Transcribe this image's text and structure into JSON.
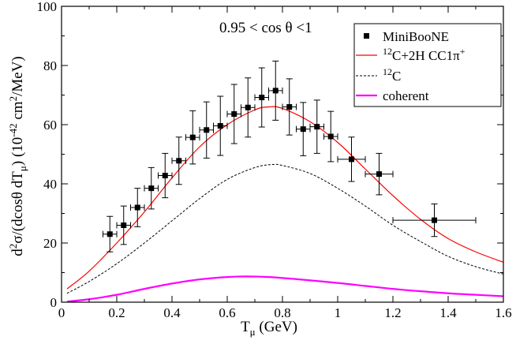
{
  "chart_data": {
    "type": "line",
    "title": "",
    "annotation": "0.95 < cos θ <1",
    "xlabel": {
      "main": "T",
      "sub": "μ",
      "unit": " (GeV)"
    },
    "ylabel": {
      "pre": "d",
      "sup2": "2",
      "mid": "σ/(dcosθ dT",
      "sub": "μ",
      "close": ") (10",
      "exp": "-42",
      "unit": " cm",
      "sup2b": "2",
      "tail": "/MeV)"
    },
    "xlim": [
      0,
      1.6
    ],
    "ylim": [
      0,
      100
    ],
    "xticks": [
      0,
      0.2,
      0.4,
      0.6,
      0.8,
      1,
      1.2,
      1.4,
      1.6
    ],
    "xtick_labels": [
      "0",
      "0.2",
      "0.4",
      "0.6",
      "0.8",
      "1",
      "1.2",
      "1.4",
      "1.6"
    ],
    "yticks": [
      0,
      20,
      40,
      60,
      80,
      100
    ],
    "ytick_labels": [
      "0",
      "20",
      "40",
      "60",
      "80",
      "100"
    ],
    "legend": {
      "position": "top-right",
      "entries": [
        {
          "key": "miniboone",
          "label": "MiniBooNE"
        },
        {
          "key": "total",
          "label_sup": "12",
          "label_main": "C+2H CC1π",
          "label_sup2": "+"
        },
        {
          "key": "carbon",
          "label_sup": "12",
          "label_main": "C"
        },
        {
          "key": "coherent",
          "label_main": "coherent"
        }
      ]
    },
    "series": [
      {
        "name": "MiniBooNE",
        "style": "points",
        "color": "#000000",
        "points": [
          {
            "x": 0.175,
            "y": 23.0,
            "xerr": 0.025,
            "yerr": 6.0
          },
          {
            "x": 0.225,
            "y": 26.0,
            "xerr": 0.025,
            "yerr": 6.5
          },
          {
            "x": 0.275,
            "y": 32.0,
            "xerr": 0.025,
            "yerr": 6.5
          },
          {
            "x": 0.325,
            "y": 38.5,
            "xerr": 0.025,
            "yerr": 7.0
          },
          {
            "x": 0.375,
            "y": 42.8,
            "xerr": 0.025,
            "yerr": 7.5
          },
          {
            "x": 0.425,
            "y": 47.8,
            "xerr": 0.025,
            "yerr": 8.0
          },
          {
            "x": 0.475,
            "y": 55.7,
            "xerr": 0.025,
            "yerr": 9.0
          },
          {
            "x": 0.525,
            "y": 58.2,
            "xerr": 0.025,
            "yerr": 9.5
          },
          {
            "x": 0.575,
            "y": 59.6,
            "xerr": 0.025,
            "yerr": 10.0
          },
          {
            "x": 0.625,
            "y": 63.6,
            "xerr": 0.025,
            "yerr": 10.0
          },
          {
            "x": 0.675,
            "y": 65.8,
            "xerr": 0.025,
            "yerr": 10.0
          },
          {
            "x": 0.725,
            "y": 69.2,
            "xerr": 0.025,
            "yerr": 10.0
          },
          {
            "x": 0.775,
            "y": 71.5,
            "xerr": 0.025,
            "yerr": 10.0
          },
          {
            "x": 0.825,
            "y": 66.0,
            "xerr": 0.025,
            "yerr": 9.5
          },
          {
            "x": 0.875,
            "y": 58.5,
            "xerr": 0.025,
            "yerr": 9.0
          },
          {
            "x": 0.925,
            "y": 59.3,
            "xerr": 0.025,
            "yerr": 9.0
          },
          {
            "x": 0.975,
            "y": 56.0,
            "xerr": 0.025,
            "yerr": 8.5
          },
          {
            "x": 1.05,
            "y": 48.3,
            "xerr": 0.05,
            "yerr": 7.5
          },
          {
            "x": 1.15,
            "y": 43.3,
            "xerr": 0.05,
            "yerr": 7.0
          },
          {
            "x": 1.35,
            "y": 27.7,
            "xerr": 0.15,
            "yerr": 5.5
          }
        ]
      },
      {
        "name": "12C+2H CC1pi+",
        "style": "solid",
        "color": "#ff0000",
        "x": [
          0.02,
          0.1,
          0.2,
          0.3,
          0.4,
          0.5,
          0.6,
          0.7,
          0.75,
          0.8,
          0.9,
          1.0,
          1.1,
          1.2,
          1.3,
          1.4,
          1.5,
          1.6
        ],
        "y": [
          4.5,
          10.5,
          20,
          30.5,
          42,
          52.5,
          60,
          65,
          66,
          65.5,
          61,
          54,
          45,
          36,
          28,
          21.5,
          17,
          13.5
        ]
      },
      {
        "name": "12C",
        "style": "dashed",
        "color": "#000000",
        "x": [
          0.02,
          0.1,
          0.2,
          0.3,
          0.4,
          0.5,
          0.6,
          0.7,
          0.76,
          0.8,
          0.9,
          1.0,
          1.1,
          1.2,
          1.3,
          1.4,
          1.5,
          1.6
        ],
        "y": [
          3,
          7,
          13,
          20,
          27.5,
          35,
          41.5,
          45.5,
          46.5,
          46.2,
          43.5,
          38.5,
          32.5,
          26,
          20.5,
          15.5,
          12,
          9.5
        ]
      },
      {
        "name": "coherent",
        "style": "solid-thick",
        "color": "#ff00ff",
        "x": [
          0.02,
          0.1,
          0.2,
          0.3,
          0.4,
          0.5,
          0.6,
          0.67,
          0.75,
          0.85,
          1.0,
          1.1,
          1.2,
          1.3,
          1.4,
          1.5,
          1.6
        ],
        "y": [
          0.2,
          1.0,
          2.5,
          4.5,
          6.3,
          7.7,
          8.5,
          8.7,
          8.5,
          7.8,
          6.5,
          5.5,
          4.5,
          3.7,
          3.0,
          2.5,
          2.0
        ]
      }
    ]
  }
}
